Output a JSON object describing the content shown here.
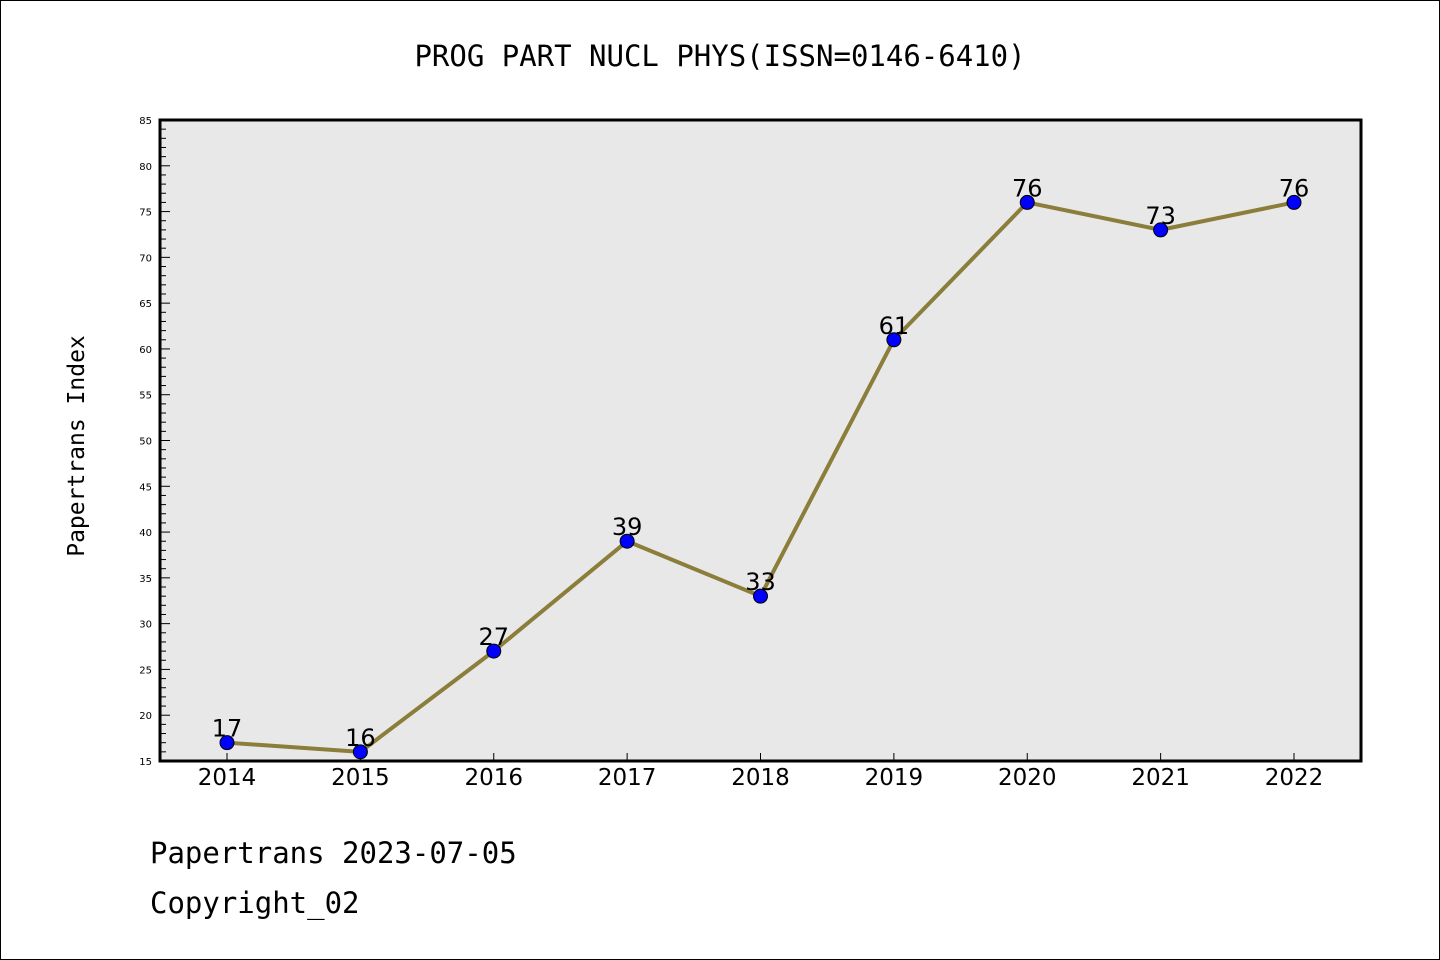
{
  "chart_data": {
    "type": "line",
    "title": "PROG PART NUCL PHYS(ISSN=0146-6410)",
    "ylabel": "Papertrans Index",
    "xlabel": "",
    "categories": [
      "2014",
      "2015",
      "2016",
      "2017",
      "2018",
      "2019",
      "2020",
      "2021",
      "2022"
    ],
    "series": [
      {
        "values": [
          17,
          16,
          27,
          39,
          33,
          61,
          76,
          73,
          76
        ]
      }
    ],
    "ylim": [
      15,
      85
    ],
    "yticks": [
      15,
      20,
      25,
      30,
      35,
      40,
      45,
      50,
      55,
      60,
      65,
      70,
      75,
      80,
      85
    ],
    "yminor_step": 1,
    "grid": false,
    "legend": "none",
    "colors": {
      "plot_background": "#e8e8e8",
      "line": "#8b7d3a",
      "marker": "#0000ff",
      "marker_edge": "#000000"
    }
  },
  "footer": {
    "line1": "Papertrans 2023-07-05",
    "line2": "Copyright_02"
  }
}
